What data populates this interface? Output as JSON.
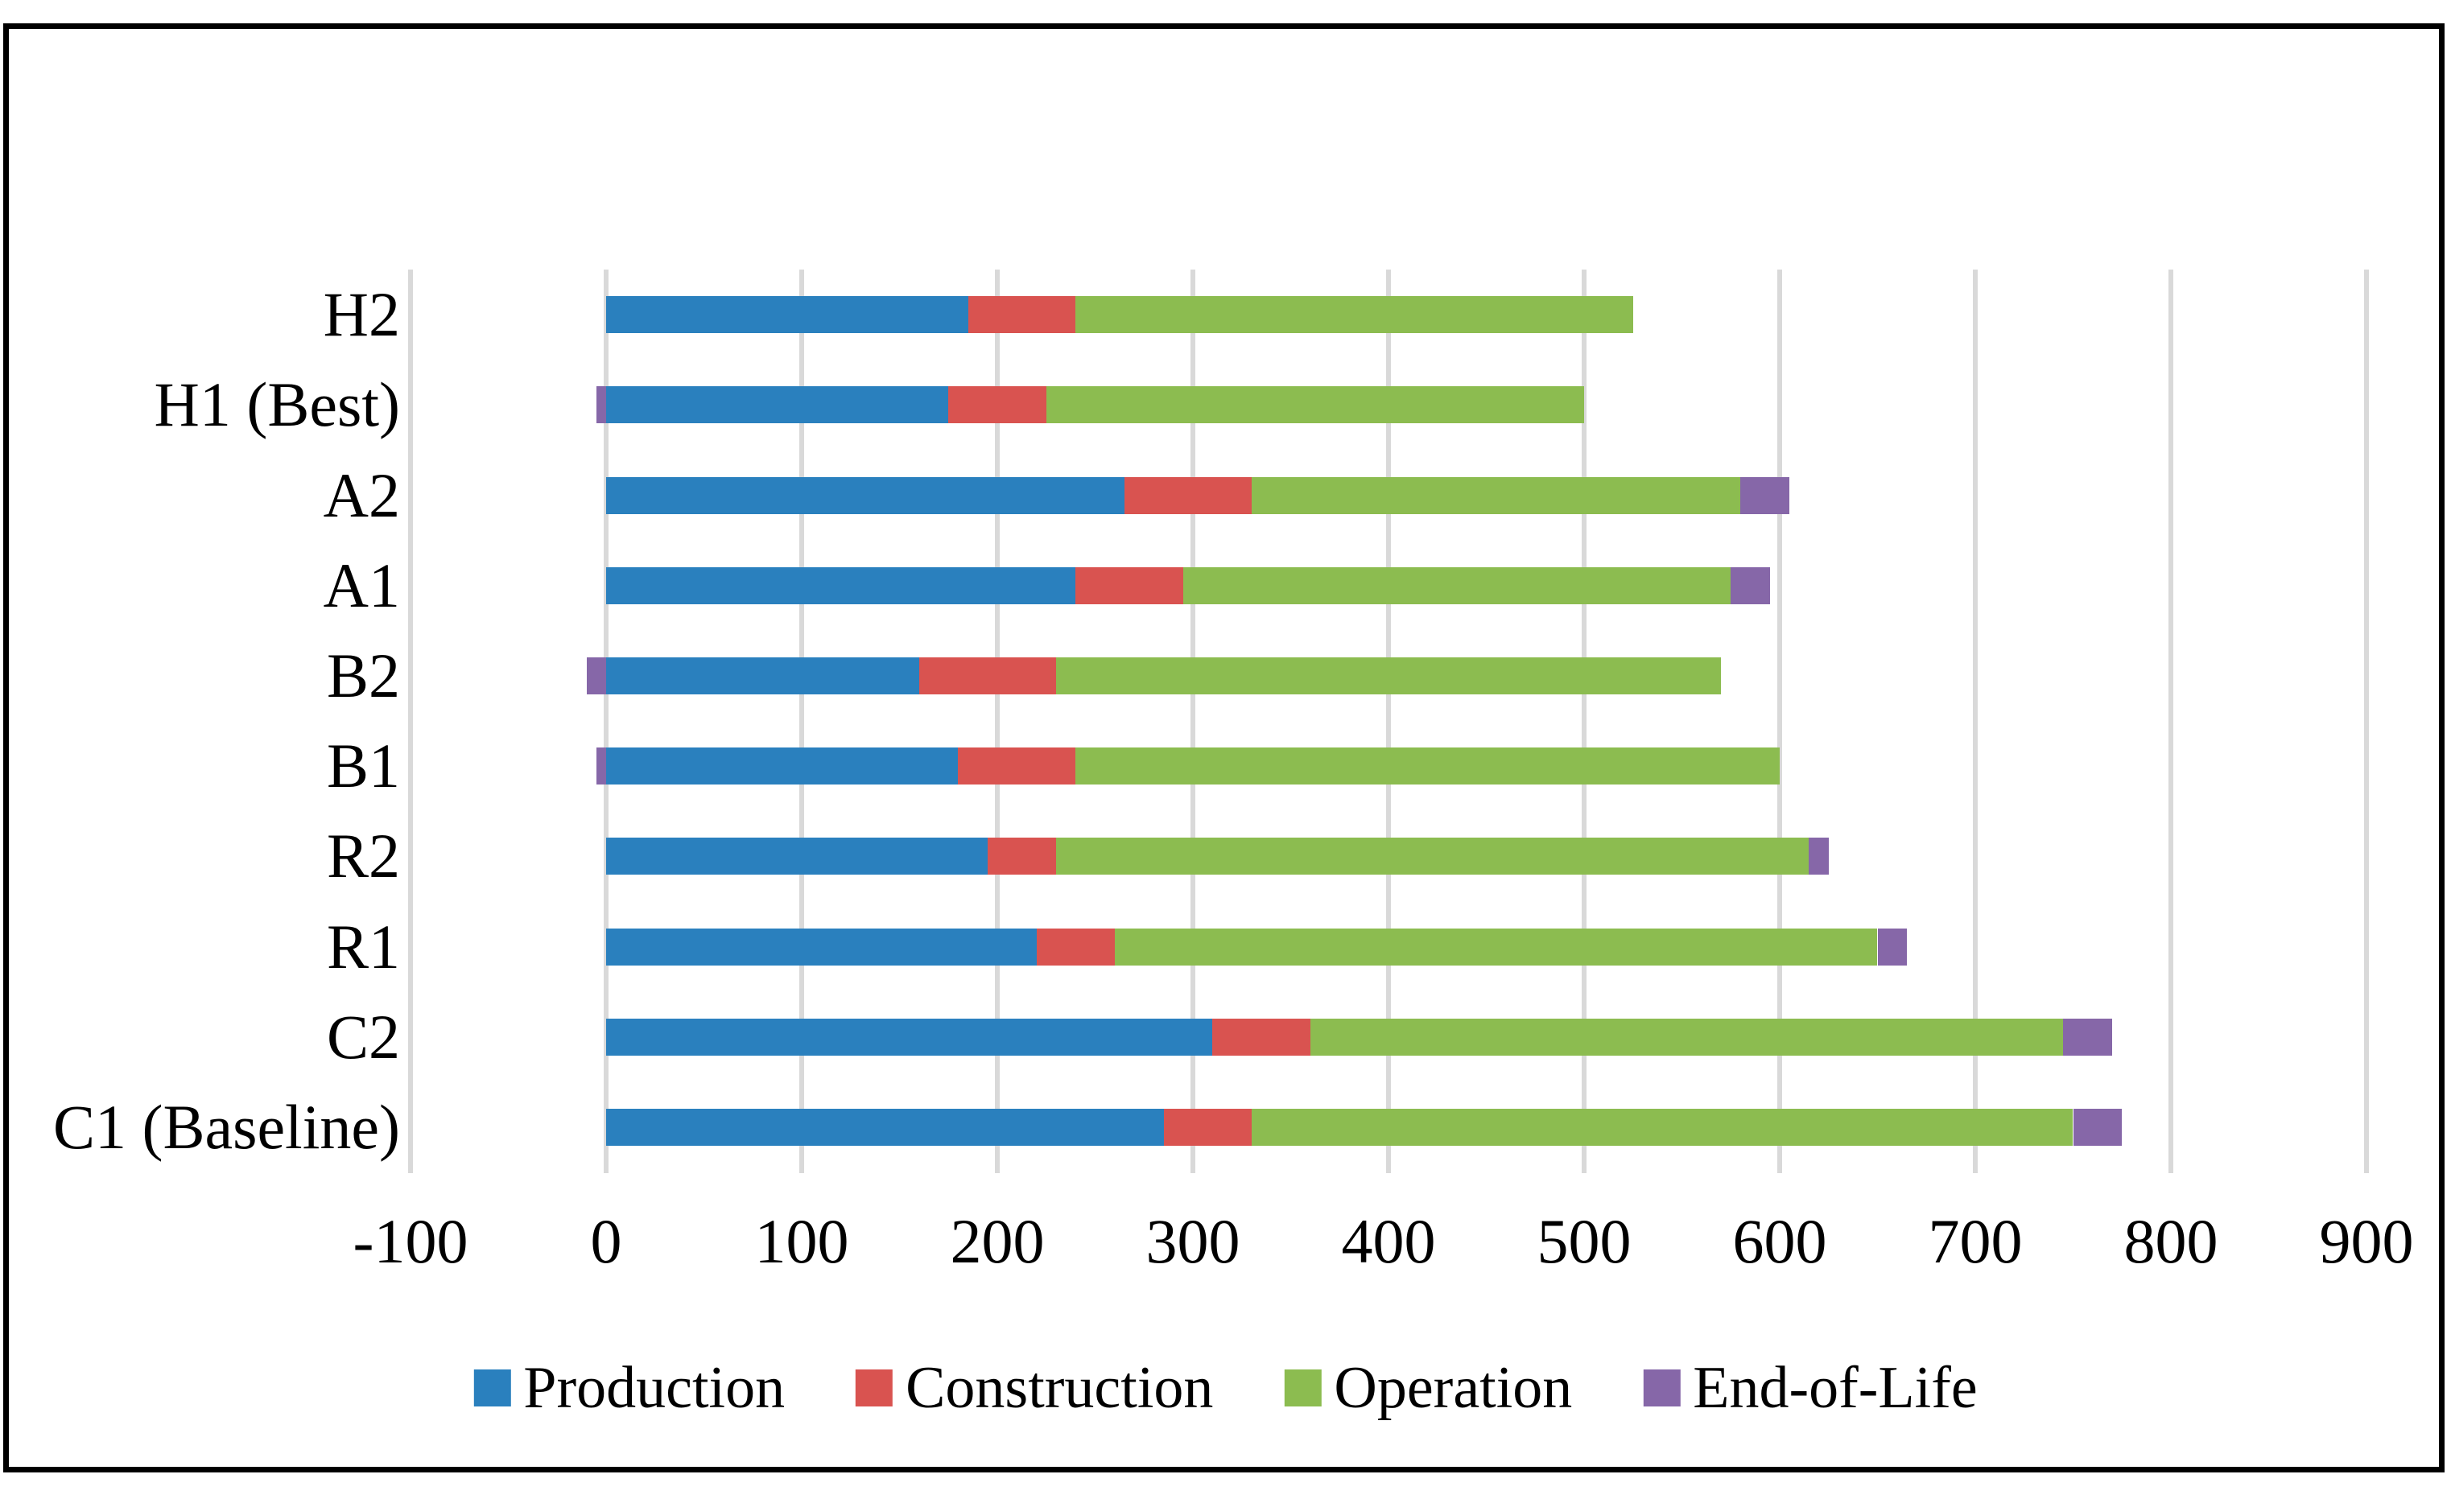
{
  "chart_data": {
    "type": "bar",
    "orientation": "horizontal",
    "stacked": true,
    "title": "",
    "xlabel": "",
    "ylabel": "",
    "categories": [
      "H2",
      "H1 (Best)",
      "A2",
      "A1",
      "B2",
      "B1",
      "R2",
      "R1",
      "C2",
      "C1 (Baseline)"
    ],
    "series": [
      {
        "name": "Production",
        "color": "#2a80be",
        "values": [
          185,
          175,
          265,
          240,
          160,
          180,
          195,
          220,
          310,
          285
        ]
      },
      {
        "name": "Construction",
        "color": "#d95350",
        "values": [
          55,
          50,
          65,
          55,
          70,
          60,
          35,
          40,
          50,
          45
        ]
      },
      {
        "name": "Operation",
        "color": "#8cbc50",
        "values": [
          285,
          275,
          250,
          280,
          340,
          360,
          385,
          390,
          385,
          420
        ]
      },
      {
        "name": "End-of-Life",
        "color": "#8667a8",
        "values": [
          0,
          -5,
          25,
          20,
          -10,
          -5,
          10,
          15,
          25,
          25
        ]
      }
    ],
    "x_ticks": [
      "-100",
      "0",
      "100",
      "200",
      "300",
      "400",
      "500",
      "600",
      "700",
      "800",
      "900"
    ],
    "x_tick_values": [
      -100,
      0,
      100,
      200,
      300,
      400,
      500,
      600,
      700,
      800,
      900
    ],
    "xlim": [
      -100,
      900
    ],
    "grid": "vertical",
    "gridline_color": "#d9d9d9",
    "legend_position": "bottom",
    "frame_color": "#000000",
    "background_color": "#ffffff",
    "text_color": "#000000"
  }
}
